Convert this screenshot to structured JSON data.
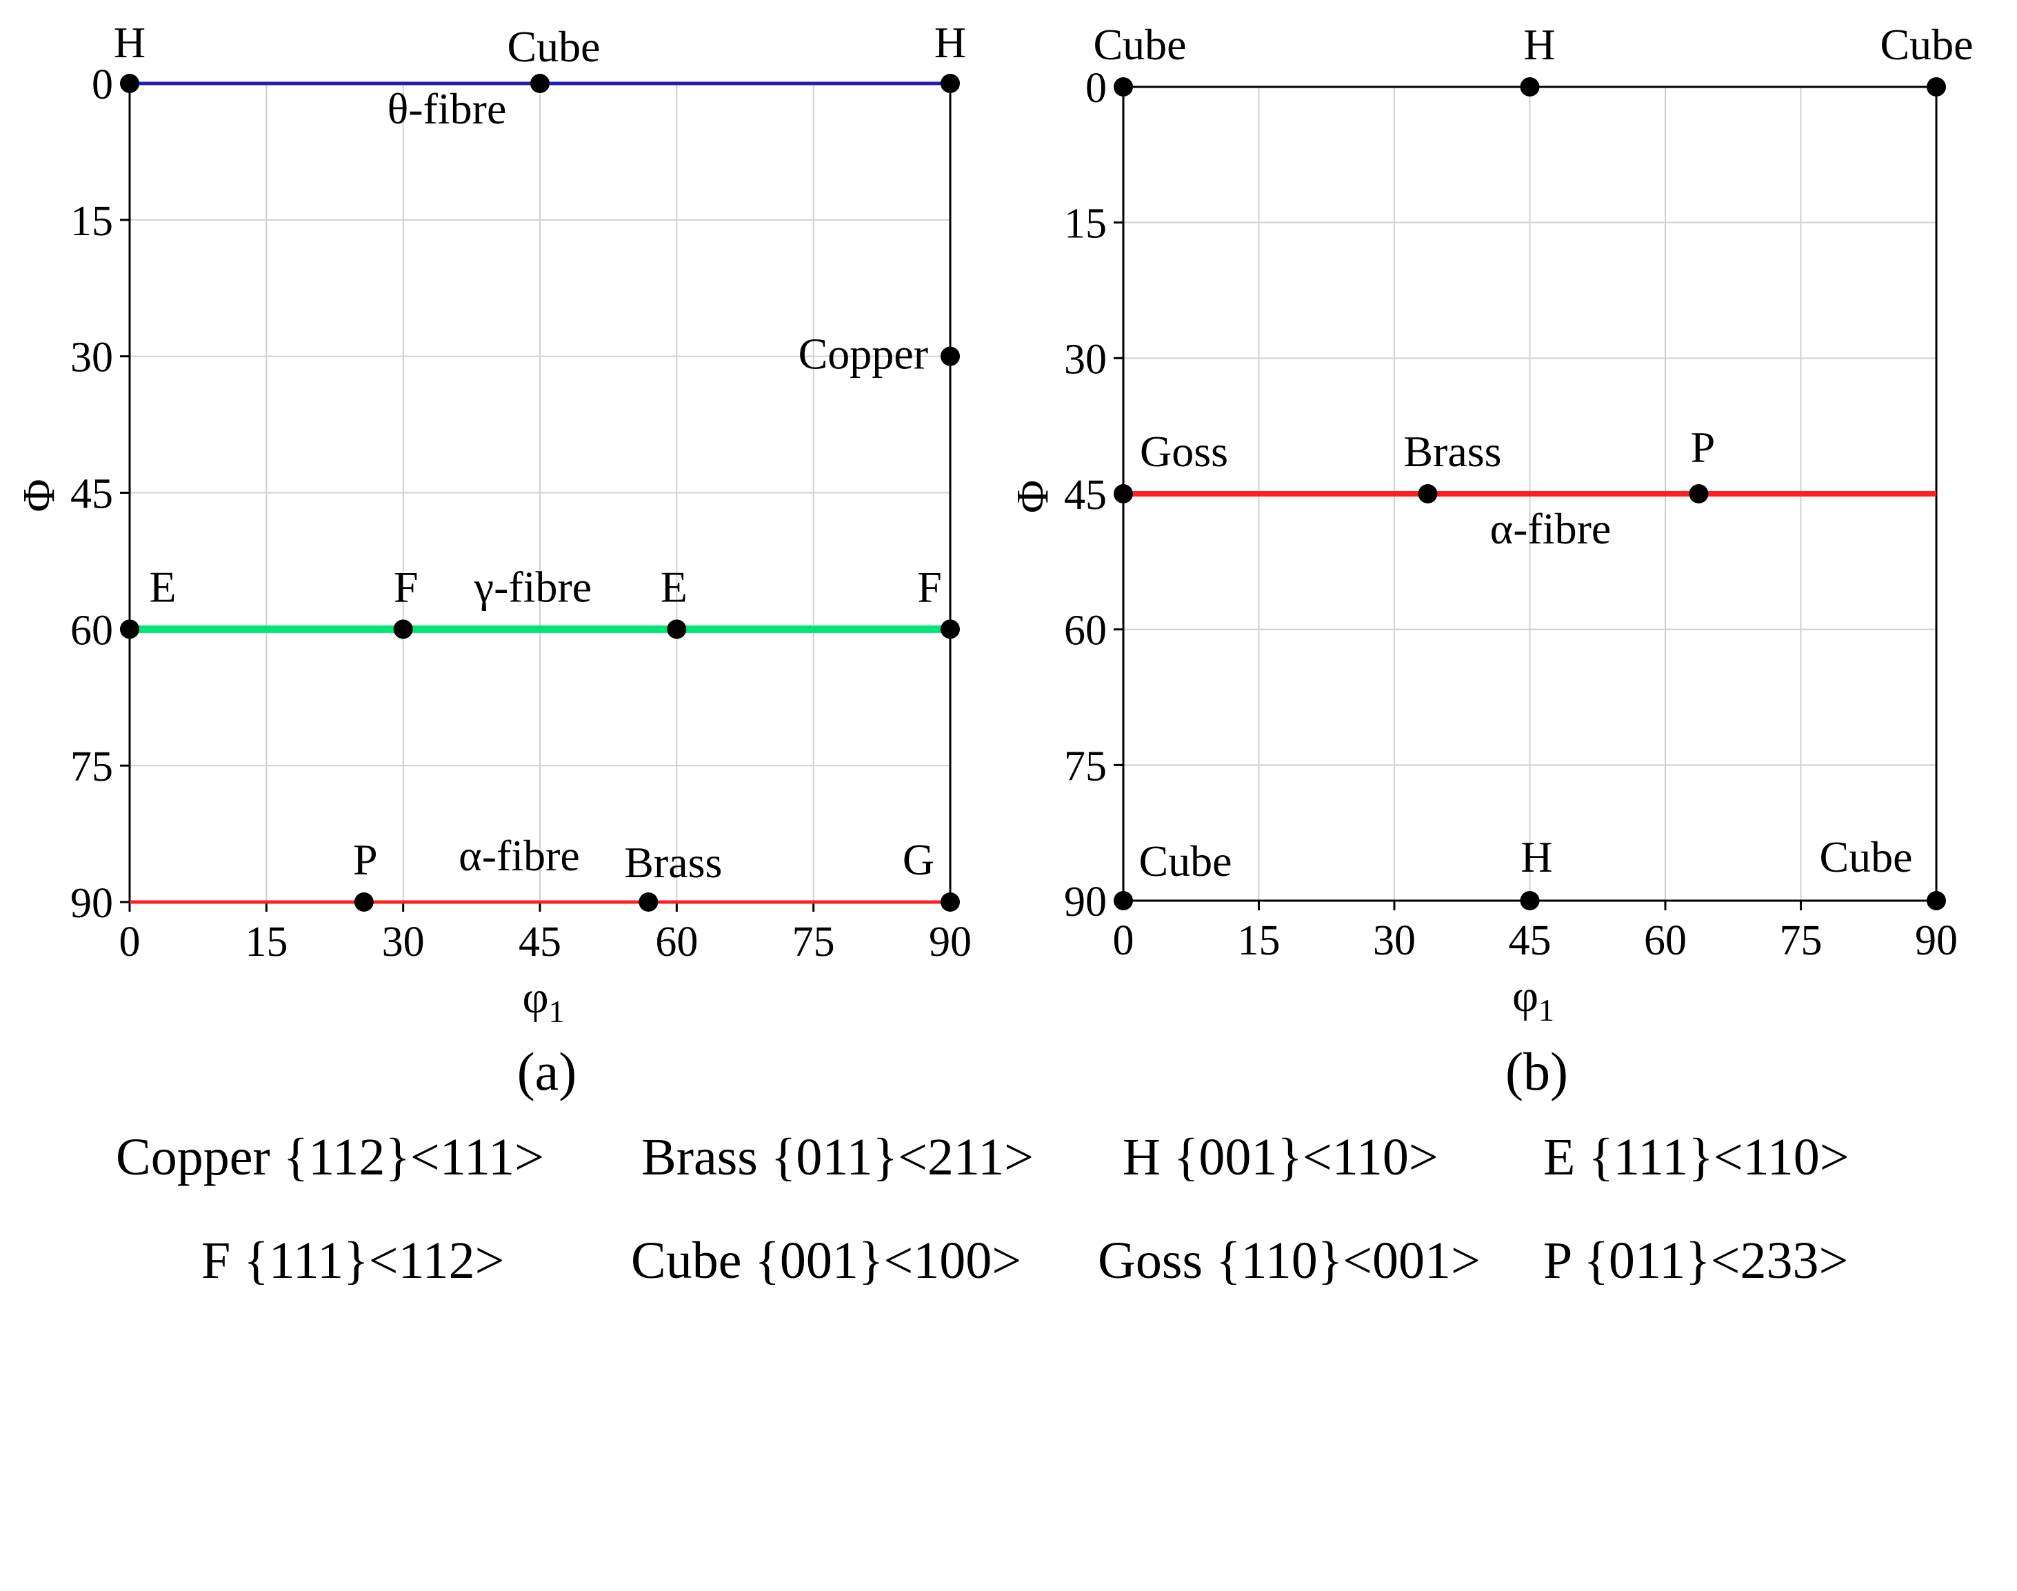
{
  "chart_data": [
    {
      "type": "line",
      "panel": "(a)",
      "xlabel": "φ1",
      "ylabel": "Φ",
      "xlim": [
        0,
        90
      ],
      "ylim": [
        0,
        90
      ],
      "y_inverted": true,
      "xticks": [
        "0",
        "15",
        "30",
        "45",
        "60",
        "75",
        "90"
      ],
      "yticks": [
        "0",
        "15",
        "30",
        "45",
        "60",
        "75",
        "90"
      ],
      "grid": true,
      "series": [
        {
          "name": "θ-fibre",
          "color": "#1f1fb4",
          "x": [
            0,
            90
          ],
          "y": [
            0,
            0
          ]
        },
        {
          "name": "γ-fibre",
          "color": "#00e676",
          "x": [
            0,
            90
          ],
          "y": [
            60,
            60
          ]
        },
        {
          "name": "α-fibre",
          "color": "#ff1f1f",
          "x": [
            0,
            90
          ],
          "y": [
            90,
            90
          ]
        }
      ],
      "points": [
        {
          "label": "H",
          "x": 0,
          "y": 0
        },
        {
          "label": "Cube",
          "x": 45,
          "y": 0
        },
        {
          "label": "H",
          "x": 90,
          "y": 0
        },
        {
          "label": "Copper",
          "x": 90,
          "y": 30
        },
        {
          "label": "E",
          "x": 0,
          "y": 60
        },
        {
          "label": "F",
          "x": 30,
          "y": 60
        },
        {
          "label": "E",
          "x": 60,
          "y": 60
        },
        {
          "label": "F",
          "x": 90,
          "y": 60
        },
        {
          "label": "P",
          "x": 25.7,
          "y": 90
        },
        {
          "label": "Brass",
          "x": 56.9,
          "y": 90
        },
        {
          "label": "G",
          "x": 90,
          "y": 90
        }
      ]
    },
    {
      "type": "line",
      "panel": "(b)",
      "xlabel": "φ1",
      "ylabel": "Φ",
      "xlim": [
        0,
        90
      ],
      "ylim": [
        0,
        90
      ],
      "y_inverted": true,
      "xticks": [
        "0",
        "15",
        "30",
        "45",
        "60",
        "75",
        "90"
      ],
      "yticks": [
        "0",
        "15",
        "30",
        "45",
        "60",
        "75",
        "90"
      ],
      "grid": true,
      "series": [
        {
          "name": "α-fibre",
          "color": "#ff1f1f",
          "x": [
            0,
            90
          ],
          "y": [
            45,
            45
          ]
        }
      ],
      "points": [
        {
          "label": "Cube",
          "x": 0,
          "y": 0
        },
        {
          "label": "H",
          "x": 45,
          "y": 0
        },
        {
          "label": "Cube",
          "x": 90,
          "y": 0
        },
        {
          "label": "Goss",
          "x": 0,
          "y": 45
        },
        {
          "label": "Brass",
          "x": 33.7,
          "y": 45
        },
        {
          "label": "P",
          "x": 63.7,
          "y": 45
        },
        {
          "label": "Cube",
          "x": 0,
          "y": 90
        },
        {
          "label": "H",
          "x": 45,
          "y": 90
        },
        {
          "label": "Cube",
          "x": 90,
          "y": 90
        }
      ]
    }
  ],
  "legend": {
    "row1": [
      "Copper {112}<111>",
      "Brass {011}<211>",
      "H {001}<110>",
      "E {111}<110>"
    ],
    "row2": [
      "F {111}<112>",
      "Cube {001}<100>",
      "Goss {110}<001>",
      "P {011}<233>"
    ]
  }
}
